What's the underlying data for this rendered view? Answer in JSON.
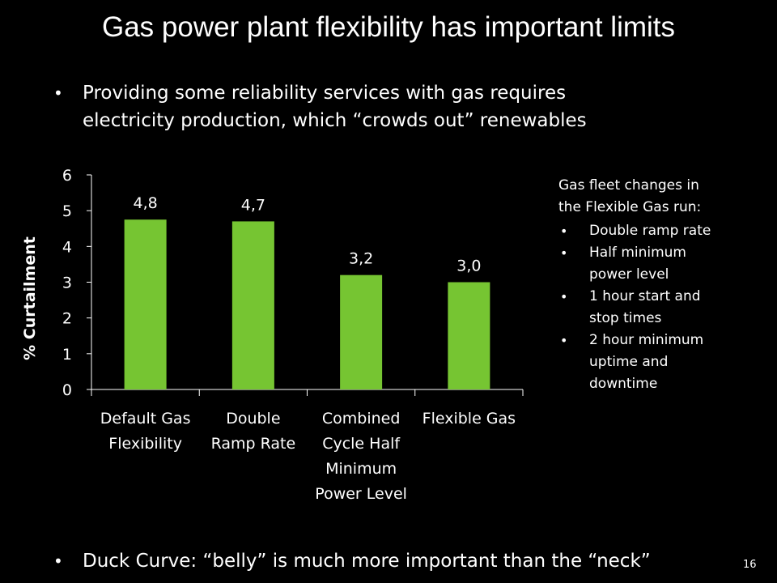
{
  "slide": {
    "title": "Gas power plant flexibility has important limits",
    "bullets": [
      "Providing some reliability services with gas requires",
      "electricity production, which “crowds out” renewables"
    ],
    "bottom_bullet": "Duck Curve: “belly” is much more important than the “neck”",
    "page_number": "16"
  },
  "sidebar": {
    "heading_lines": [
      "Gas fleet changes in",
      "the Flexible Gas run:"
    ],
    "items": [
      [
        "Double ramp rate"
      ],
      [
        "Half minimum",
        "power level"
      ],
      [
        "1 hour start and",
        "stop times"
      ],
      [
        "2 hour minimum",
        "uptime and",
        "downtime"
      ]
    ]
  },
  "chart_data": {
    "type": "bar",
    "categories": [
      [
        "Default Gas",
        "Flexibility"
      ],
      [
        "Double",
        "Ramp Rate"
      ],
      [
        "Combined",
        "Cycle Half",
        "Minimum",
        "Power Level"
      ],
      [
        "Flexible Gas"
      ]
    ],
    "values": [
      4.75,
      4.7,
      3.2,
      3.0
    ],
    "data_labels": [
      "4,8",
      "4,7",
      "3,2",
      "3,0"
    ],
    "ylabel": "% Curtailment",
    "ylim": [
      0,
      6
    ],
    "yticks": [
      "0",
      "1",
      "2",
      "3",
      "4",
      "5",
      "6"
    ],
    "bar_color": "#76c532",
    "grid": false,
    "legend": "none"
  }
}
